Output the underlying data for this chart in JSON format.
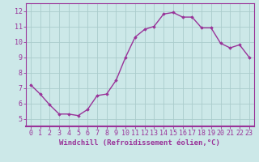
{
  "x": [
    0,
    1,
    2,
    3,
    4,
    5,
    6,
    7,
    8,
    9,
    10,
    11,
    12,
    13,
    14,
    15,
    16,
    17,
    18,
    19,
    20,
    21,
    22,
    23
  ],
  "y": [
    7.2,
    6.6,
    5.9,
    5.3,
    5.3,
    5.2,
    5.6,
    6.5,
    6.6,
    7.5,
    9.0,
    10.3,
    10.8,
    11.0,
    11.8,
    11.9,
    11.6,
    11.6,
    10.9,
    10.9,
    9.9,
    9.6,
    9.8,
    9.0
  ],
  "line_color": "#993399",
  "marker": "D",
  "marker_size": 1.8,
  "xlabel": "Windchill (Refroidissement éolien,°C)",
  "xlim": [
    -0.5,
    23.5
  ],
  "ylim": [
    4.5,
    12.5
  ],
  "yticks": [
    5,
    6,
    7,
    8,
    9,
    10,
    11,
    12
  ],
  "xticks": [
    0,
    1,
    2,
    3,
    4,
    5,
    6,
    7,
    8,
    9,
    10,
    11,
    12,
    13,
    14,
    15,
    16,
    17,
    18,
    19,
    20,
    21,
    22,
    23
  ],
  "background_color": "#cce8e8",
  "grid_color": "#aacccc",
  "xlabel_fontsize": 6.5,
  "tick_fontsize": 6.0,
  "line_width": 1.0,
  "spine_color": "#993399",
  "bottom_bar_color": "#993399"
}
